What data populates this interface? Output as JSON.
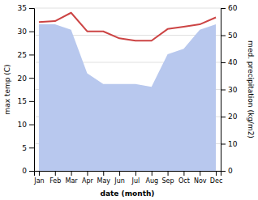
{
  "chart_data": {
    "type": "line",
    "categories": [
      "Jan",
      "Feb",
      "Mar",
      "Apr",
      "May",
      "Jun",
      "Jul",
      "Aug",
      "Sep",
      "Oct",
      "Nov",
      "Dec"
    ],
    "xlabel": "date (month)",
    "ylabel": "max temp (C)",
    "y2label": "med. precipitation (kg/m2)",
    "series": [
      {
        "type": "area",
        "axis": "y2",
        "color": "#b8c8ee",
        "values": [
          54,
          54,
          52,
          36,
          32,
          32,
          32,
          31,
          43,
          45,
          52,
          54
        ]
      },
      {
        "type": "line",
        "color": "#cc4444",
        "values": [
          32.0,
          32.2,
          34.0,
          30.0,
          30.0,
          28.5,
          28.0,
          28.0,
          30.5,
          31.0,
          31.5,
          33.0
        ]
      }
    ],
    "ylim": [
      0,
      35
    ],
    "yticks": [
      0,
      5,
      10,
      15,
      20,
      25,
      30,
      35
    ],
    "y2lim": [
      0,
      60
    ],
    "y2ticks": [
      0,
      10,
      20,
      30,
      40,
      50,
      60
    ],
    "grid": true
  }
}
